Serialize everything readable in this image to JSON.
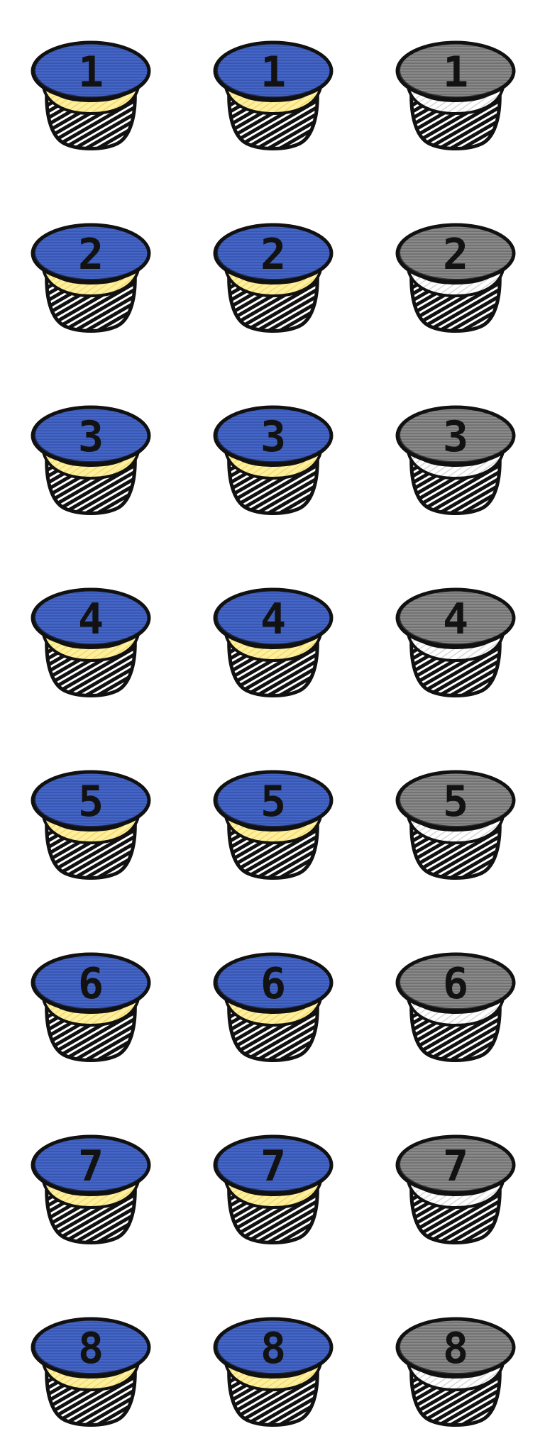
{
  "sprite_sheet": {
    "digits": [
      "1",
      "2",
      "3",
      "4",
      "5",
      "6",
      "7",
      "8"
    ],
    "states": [
      {
        "state": "normal",
        "top_color": "#4466c8",
        "band_color": "#fff0a0",
        "base_color": "#111111",
        "hatch_color": "#1a2a70",
        "band_hatch_color": "#e8c840"
      },
      {
        "state": "pressed",
        "top_color": "#4466c8",
        "band_color": "#fff0a0",
        "base_color": "#111111",
        "hatch_color": "#1a2a70",
        "band_hatch_color": "#e8c840"
      },
      {
        "state": "disabled",
        "top_color": "#8a8a8a",
        "band_color": "#ffffff",
        "base_color": "#111111",
        "hatch_color": "#2a2a2a",
        "band_hatch_color": "#bbbbbb"
      }
    ]
  }
}
